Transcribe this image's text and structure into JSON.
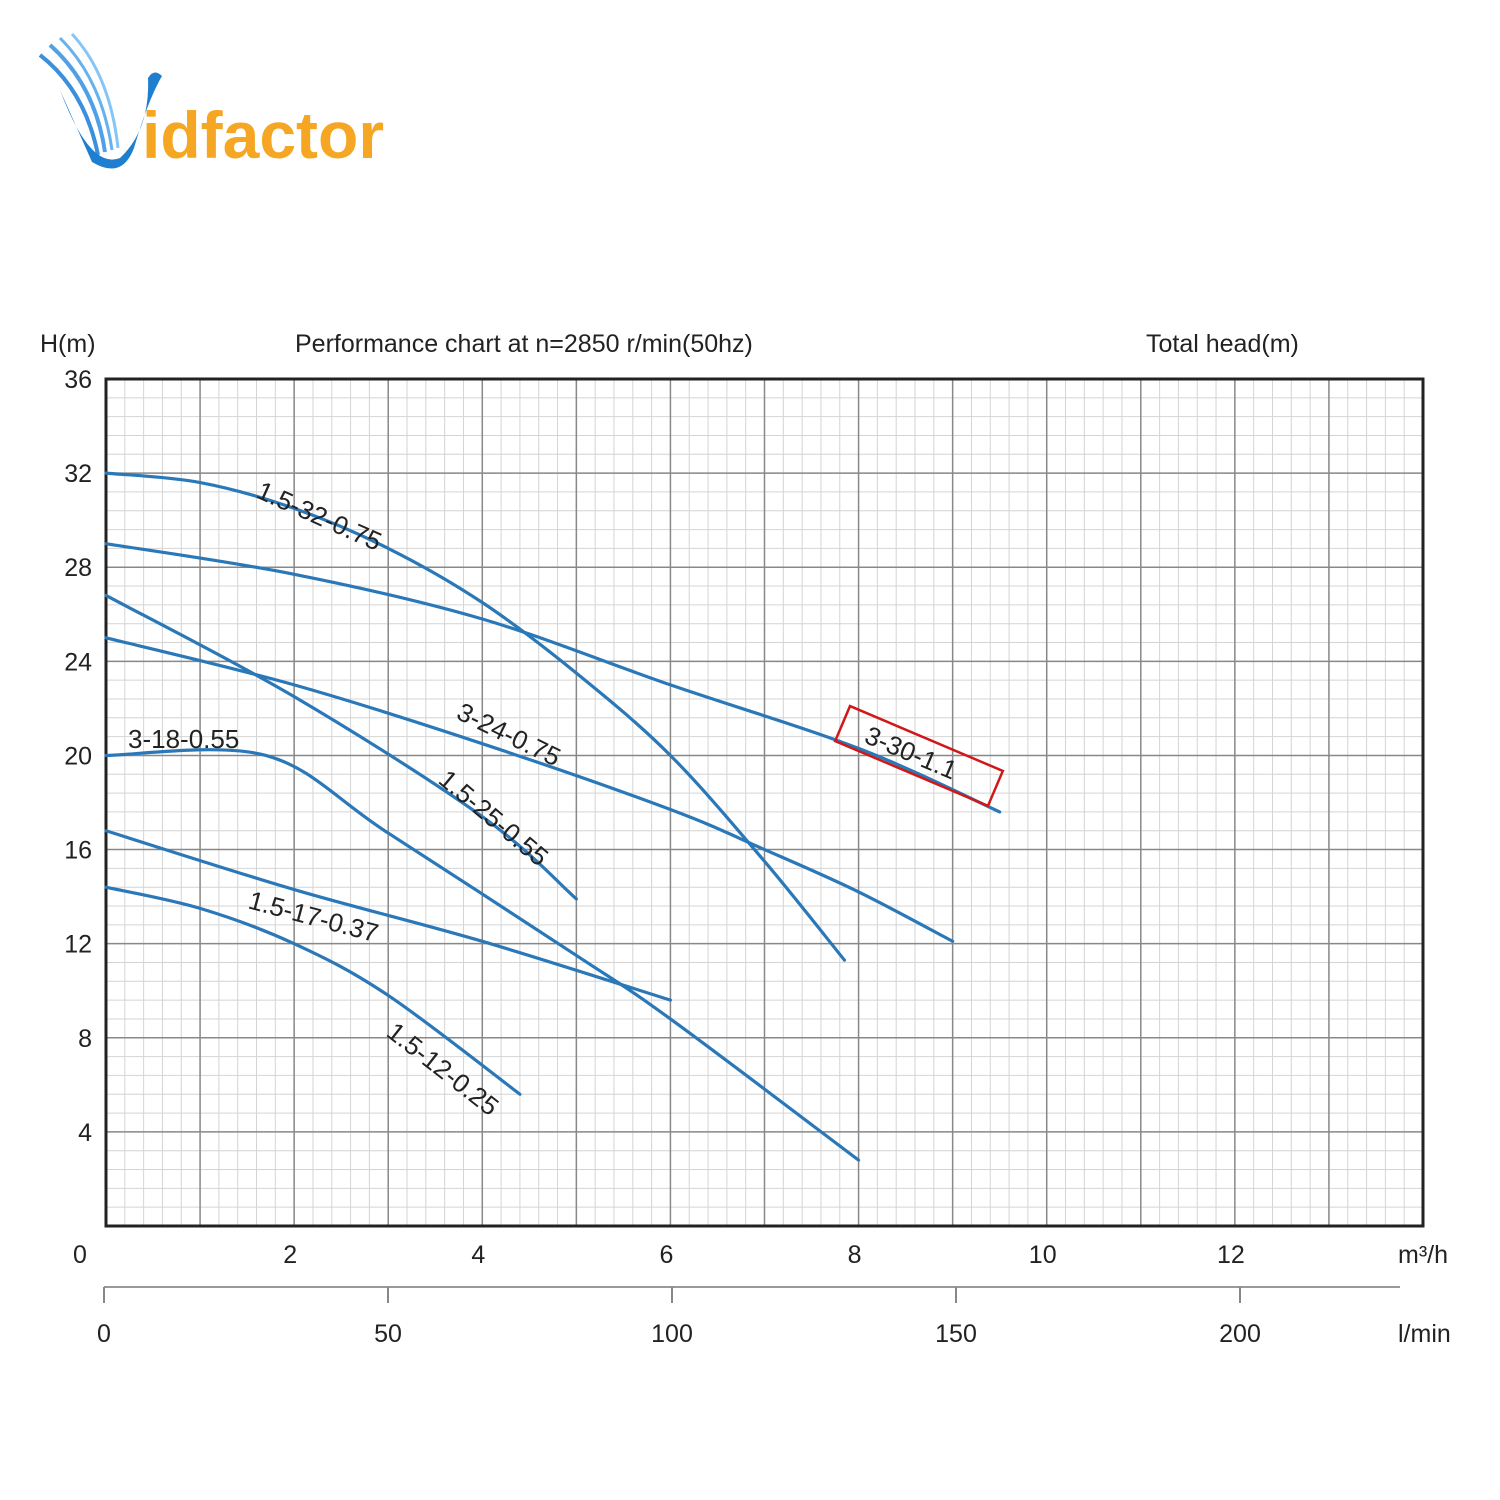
{
  "logo": {
    "text_v": "V",
    "text_rest": "idfactor",
    "primary": "#1e7fd0",
    "accent": "#f5a623"
  },
  "chart_data": {
    "type": "line",
    "title": "Performance chart at n=2850 r/min(50hz)",
    "ylabel": "H(m)",
    "ylabel_right": "Total head(m)",
    "xunit": "m³/h",
    "xunit2": "l/min",
    "xlim": [
      0,
      14
    ],
    "ylim": [
      0,
      36
    ],
    "xticks": [
      "0",
      "2",
      "4",
      "6",
      "8",
      "10",
      "12"
    ],
    "yticks": [
      "36",
      "32",
      "28",
      "24",
      "20",
      "16",
      "12",
      "8",
      "4"
    ],
    "x2ticks": [
      {
        "value": 0,
        "label": "0"
      },
      {
        "value": 50,
        "label": "50"
      },
      {
        "value": 100,
        "label": "100"
      },
      {
        "value": 150,
        "label": "150"
      },
      {
        "value": 200,
        "label": "200"
      }
    ],
    "grid": true,
    "line_color": "#2a78b8",
    "highlight_color": "#d01818",
    "series": [
      {
        "name": "1.5-32-0.75",
        "points": [
          [
            0,
            32
          ],
          [
            1,
            31.6
          ],
          [
            2,
            30.5
          ],
          [
            3,
            28.8
          ],
          [
            4,
            26.5
          ],
          [
            5,
            23.5
          ],
          [
            6,
            20
          ],
          [
            7,
            15.5
          ],
          [
            7.85,
            11.3
          ]
        ]
      },
      {
        "name": "3-30-1.1",
        "highlight": true,
        "points": [
          [
            0,
            29
          ],
          [
            2,
            27.7
          ],
          [
            4,
            25.8
          ],
          [
            6,
            23
          ],
          [
            8,
            20.3
          ],
          [
            9.5,
            17.6
          ]
        ]
      },
      {
        "name": "1.5-25-0.55",
        "points": [
          [
            0,
            26.8
          ],
          [
            2,
            22.5
          ],
          [
            4,
            17.4
          ],
          [
            5,
            13.9
          ]
        ]
      },
      {
        "name": "3-24-0.75",
        "points": [
          [
            0,
            25
          ],
          [
            2,
            23
          ],
          [
            4,
            20.5
          ],
          [
            6,
            17.7
          ],
          [
            7,
            16
          ],
          [
            8,
            14.2
          ],
          [
            9,
            12.1
          ]
        ]
      },
      {
        "name": "3-18-0.55",
        "points": [
          [
            0,
            20
          ],
          [
            1.7,
            20
          ],
          [
            3,
            16.7
          ],
          [
            5,
            11.5
          ],
          [
            6,
            8.8
          ],
          [
            8,
            2.8
          ]
        ]
      },
      {
        "name": "1.5-17-0.37",
        "points": [
          [
            0,
            16.8
          ],
          [
            2,
            14.3
          ],
          [
            4,
            12.1
          ],
          [
            6,
            9.6
          ]
        ]
      },
      {
        "name": "1.5-12-0.25",
        "points": [
          [
            0,
            14.4
          ],
          [
            1,
            13.5
          ],
          [
            2,
            12
          ],
          [
            3,
            9.8
          ],
          [
            4.4,
            5.6
          ]
        ]
      }
    ]
  }
}
